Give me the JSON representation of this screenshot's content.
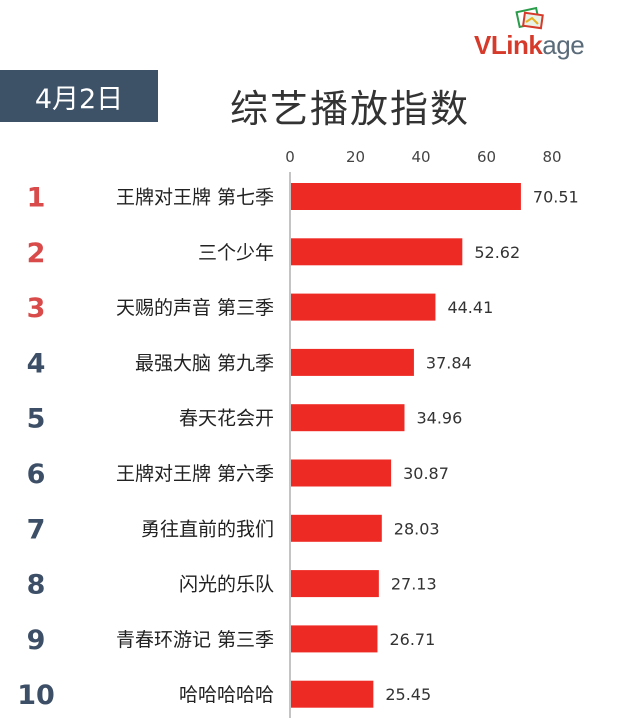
{
  "date_badge": "4月2日",
  "title": "综艺播放指数",
  "logo": {
    "text_v": "V",
    "text_link": "Link",
    "text_age": "age"
  },
  "colors": {
    "bar": "#ee2a24",
    "badge": "#3d5167",
    "rank_top": "#d94a4a",
    "rank_other": "#3d4f66",
    "axis": "#888888"
  },
  "chart_data": {
    "type": "bar",
    "orientation": "horizontal",
    "title": "综艺播放指数",
    "ranks": [
      "1",
      "2",
      "3",
      "4",
      "5",
      "6",
      "7",
      "8",
      "9",
      "10"
    ],
    "categories": [
      "王牌对王牌 第七季",
      "三个少年",
      "天赐的声音 第三季",
      "最强大脑 第九季",
      "春天花会开",
      "王牌对王牌 第六季",
      "勇往直前的我们",
      "闪光的乐队",
      "青春环游记 第三季",
      "哈哈哈哈哈"
    ],
    "values": [
      70.51,
      52.62,
      44.41,
      37.84,
      34.96,
      30.87,
      28.03,
      27.13,
      26.71,
      25.45
    ],
    "value_labels": [
      "70.51",
      "52.62",
      "44.41",
      "37.84",
      "34.96",
      "30.87",
      "28.03",
      "27.13",
      "26.71",
      "25.45"
    ],
    "xticks": [
      "0",
      "20",
      "40",
      "60",
      "80"
    ],
    "xlim": [
      0,
      80
    ],
    "axis_position": "top",
    "grid": false,
    "legend": "none"
  }
}
